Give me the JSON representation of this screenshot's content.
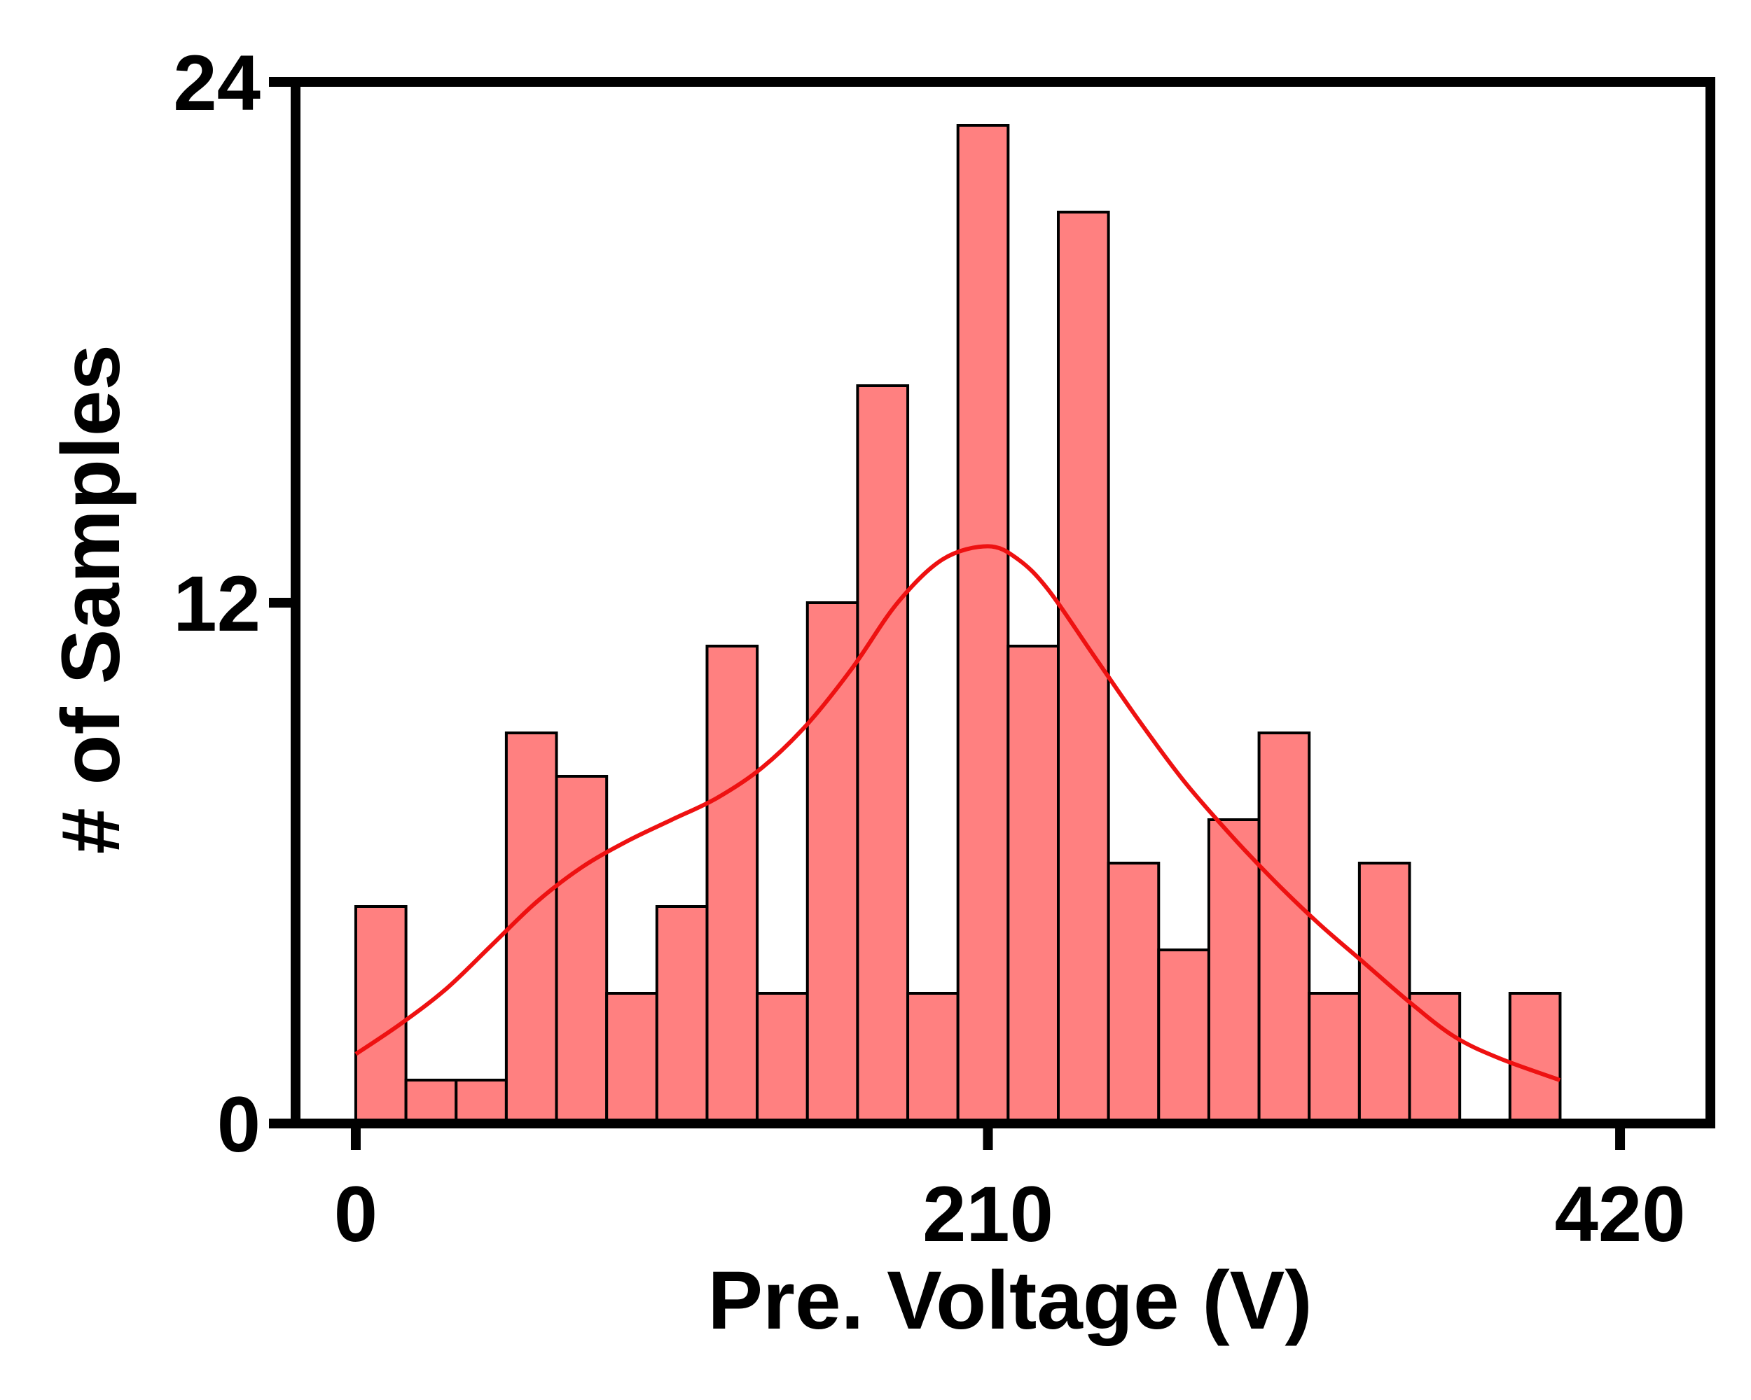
{
  "chart_data": {
    "type": "bar",
    "subtype": "histogram",
    "title": "",
    "xlabel": "Pre. Voltage (V)",
    "ylabel": "# of Samples",
    "xlim": [
      -20,
      450
    ],
    "ylim": [
      0,
      24
    ],
    "xticks": [
      {
        "value": 0,
        "label": "0"
      },
      {
        "value": 210,
        "label": "210"
      },
      {
        "value": 420,
        "label": "420"
      }
    ],
    "yticks": [
      {
        "value": 0,
        "label": "0"
      },
      {
        "value": 12,
        "label": "12"
      },
      {
        "value": 24,
        "label": "24"
      }
    ],
    "bin_width": 16.67,
    "bin_start": 0,
    "values": [
      5,
      1,
      1,
      9,
      8,
      3,
      5,
      11,
      3,
      12,
      17,
      3,
      23,
      11,
      21,
      6,
      4,
      7,
      9,
      3,
      6,
      3,
      0,
      3
    ],
    "density_curve": {
      "x": [
        0,
        15,
        30,
        45,
        60,
        75,
        90,
        105,
        120,
        135,
        150,
        165,
        180,
        195,
        210,
        220,
        230,
        245,
        260,
        275,
        290,
        305,
        320,
        335,
        350,
        365,
        380,
        400
      ],
      "y": [
        1.6,
        2.3,
        3.1,
        4.1,
        5.1,
        5.9,
        6.5,
        7.0,
        7.5,
        8.2,
        9.2,
        10.5,
        12.0,
        13.0,
        13.3,
        13.0,
        12.3,
        10.8,
        9.3,
        7.9,
        6.7,
        5.6,
        4.6,
        3.7,
        2.8,
        2.0,
        1.5,
        1.0
      ],
      "color": "#ee1111"
    },
    "bar_fill": "#ff8080",
    "bar_edge": "#000000",
    "grid": false,
    "legend": "none"
  }
}
